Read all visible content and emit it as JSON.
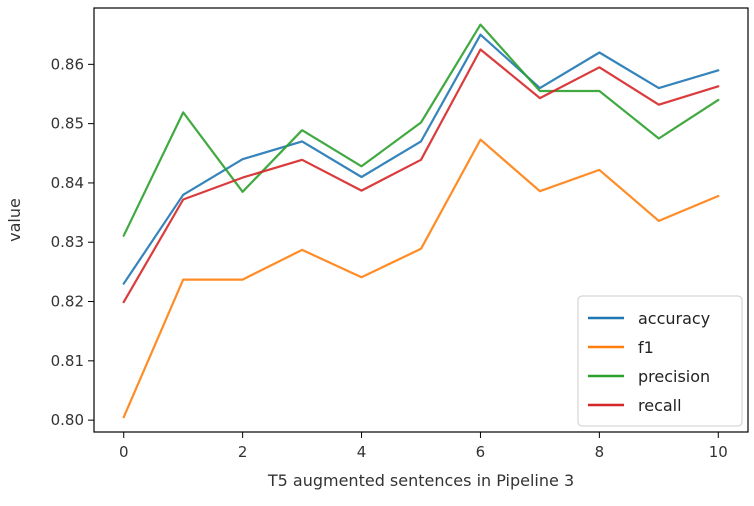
{
  "chart_data": {
    "type": "line",
    "title": "",
    "xlabel": "T5 augmented sentences in Pipeline 3",
    "ylabel": "value",
    "x": [
      0,
      1,
      2,
      3,
      4,
      5,
      6,
      7,
      8,
      9,
      10
    ],
    "xlim": [
      -0.5,
      10.5
    ],
    "ylim": [
      0.798,
      0.8695
    ],
    "xticks": [
      0,
      2,
      4,
      6,
      8,
      10
    ],
    "yticks": [
      0.8,
      0.81,
      0.82,
      0.83,
      0.84,
      0.85,
      0.86
    ],
    "ytick_labels": [
      "0.80",
      "0.81",
      "0.82",
      "0.83",
      "0.84",
      "0.85",
      "0.86"
    ],
    "grid": false,
    "legend_position": "lower-right",
    "series": [
      {
        "name": "accuracy",
        "color": "#1f77b4",
        "values": [
          0.823,
          0.838,
          0.844,
          0.847,
          0.841,
          0.847,
          0.865,
          0.856,
          0.862,
          0.856,
          0.859
        ]
      },
      {
        "name": "f1",
        "color": "#ff7f0e",
        "values": [
          0.8005,
          0.8237,
          0.8237,
          0.8287,
          0.8241,
          0.8289,
          0.8473,
          0.8386,
          0.8422,
          0.8336,
          0.8378
        ]
      },
      {
        "name": "precision",
        "color": "#2ca02c",
        "values": [
          0.8311,
          0.8519,
          0.8385,
          0.8489,
          0.8428,
          0.8502,
          0.8667,
          0.8555,
          0.8555,
          0.8475,
          0.854
        ]
      },
      {
        "name": "recall",
        "color": "#d62728",
        "values": [
          0.8199,
          0.8372,
          0.8409,
          0.8439,
          0.8387,
          0.8439,
          0.8625,
          0.8543,
          0.8595,
          0.8532,
          0.8563
        ]
      }
    ]
  }
}
